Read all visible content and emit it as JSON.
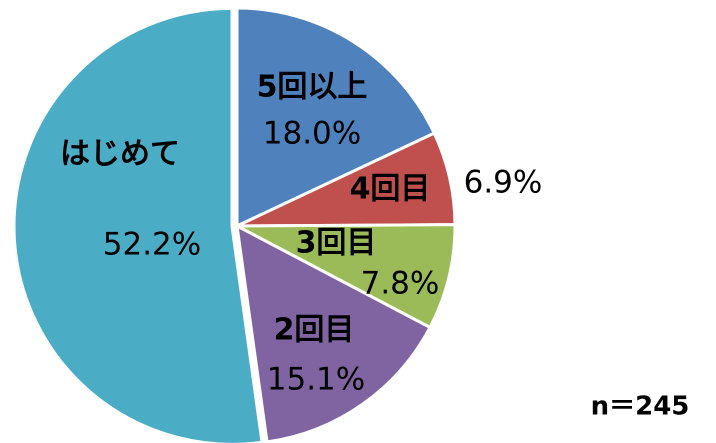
{
  "chart_data": {
    "type": "pie",
    "categories": [
      "5回以上",
      "4回目",
      "3回目",
      "2回目",
      "はじめて"
    ],
    "values": [
      18.0,
      6.9,
      7.8,
      15.1,
      52.2
    ],
    "value_labels": [
      "18.0%",
      "6.9%",
      "7.8%",
      "15.1%",
      "52.2%"
    ],
    "colors": [
      "#4f81bd",
      "#c0504d",
      "#9bbb59",
      "#8064a2",
      "#4bacc6"
    ],
    "annotation": "n＝245"
  }
}
